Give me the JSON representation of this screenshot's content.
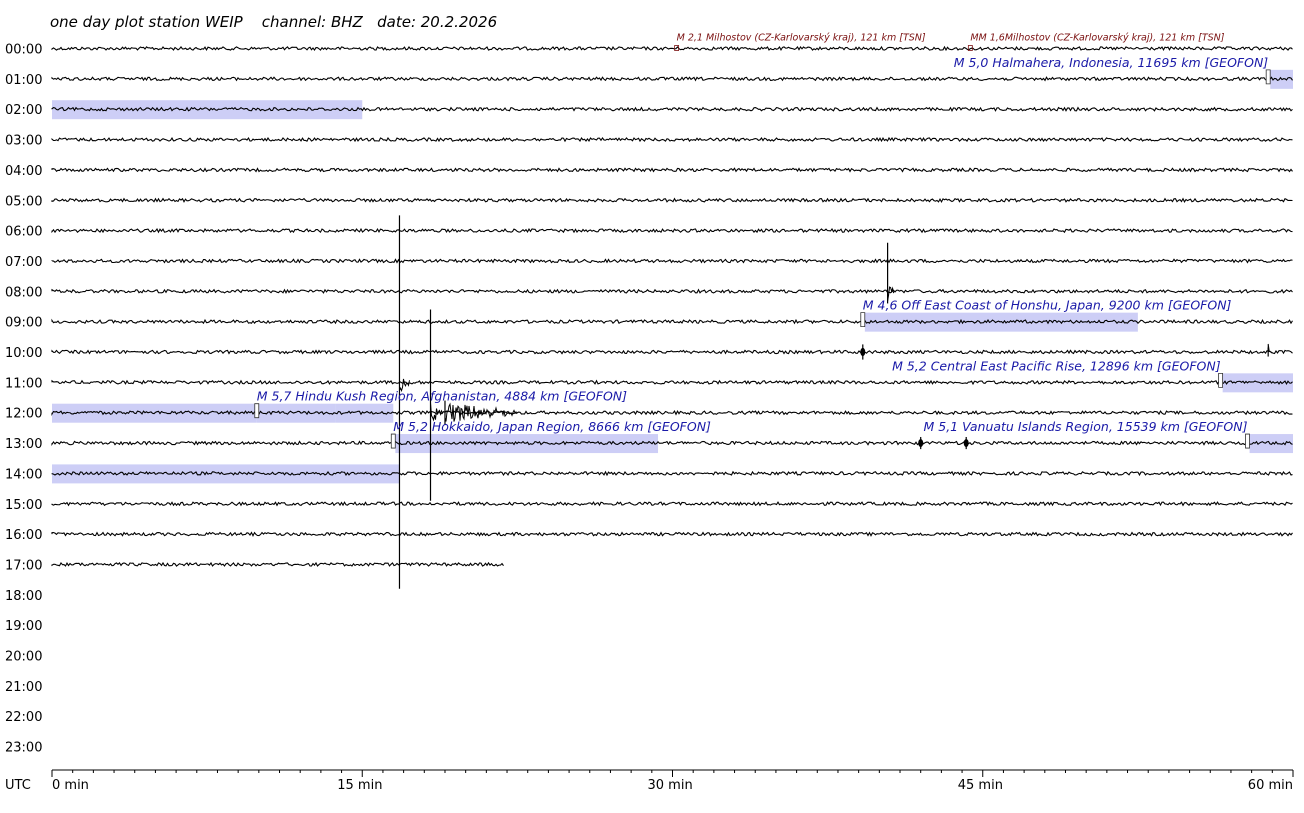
{
  "title": "one day plot station WEIP    channel: BHZ   date: 20.2.2026",
  "chart_data": {
    "type": "helicorder",
    "station": "WEIP",
    "channel": "BHZ",
    "date": "20.2.2026",
    "timezone_label": "UTC",
    "row_labels": [
      "00:00",
      "01:00",
      "02:00",
      "03:00",
      "04:00",
      "05:00",
      "06:00",
      "07:00",
      "08:00",
      "09:00",
      "10:00",
      "11:00",
      "12:00",
      "13:00",
      "14:00",
      "15:00",
      "16:00",
      "17:00",
      "18:00",
      "19:00",
      "20:00",
      "21:00",
      "22:00",
      "23:00"
    ],
    "x_ticks": [
      {
        "value": 0,
        "label": "0 min"
      },
      {
        "value": 15,
        "label": "15 min"
      },
      {
        "value": 30,
        "label": "30 min"
      },
      {
        "value": 45,
        "label": "45 min"
      },
      {
        "value": 60,
        "label": "60 min"
      }
    ],
    "xlim": [
      0,
      60
    ],
    "data_end": {
      "hour": 17,
      "minute": 21.9
    },
    "events": [
      {
        "label": "M 2,1 Milhostov (CZ-Karlovarský kraj), 121 km  [TSN]",
        "hour": 0,
        "minute": 30.2,
        "source": "TSN",
        "magnitude": 2.1
      },
      {
        "label": "MM 1,6Milhostov (CZ-Karlovarský kraj), 121 km  [TSN]",
        "hour": 0,
        "minute": 44.4,
        "source": "TSN",
        "magnitude": 1.6
      },
      {
        "label": "M 5,0 Halmahera, Indonesia, 11695 km  [GEOFON]",
        "hour": 1,
        "minute": 58.8,
        "source": "GEOFON",
        "magnitude": 5.0
      },
      {
        "label": "M 4,6 Off East Coast of Honshu, Japan, 9200 km  [GEOFON]",
        "hour": 9,
        "minute": 39.2,
        "source": "GEOFON",
        "magnitude": 4.6
      },
      {
        "label": "M 5,2 Central East Pacific Rise, 12896 km  [GEOFON]",
        "hour": 11,
        "minute": 56.5,
        "source": "GEOFON",
        "magnitude": 5.2
      },
      {
        "label": "M 5,7 Hindu Kush Region, Afghanistan, 4884 km  [GEOFON]",
        "hour": 12,
        "minute": 9.9,
        "source": "GEOFON",
        "magnitude": 5.7
      },
      {
        "label": "M 5,2 Hokkaido, Japan Region, 8666 km  [GEOFON]",
        "hour": 13,
        "minute": 16.5,
        "source": "GEOFON",
        "magnitude": 5.2
      },
      {
        "label": "M 5,1 Vanuatu Islands Region, 15539 km  [GEOFON]",
        "hour": 13,
        "minute": 57.8,
        "source": "GEOFON",
        "magnitude": 5.1
      }
    ],
    "highlights": [
      {
        "hour": 1,
        "start": 58.9,
        "end": 60
      },
      {
        "hour": 2,
        "start": 0,
        "end": 15
      },
      {
        "hour": 9,
        "start": 39.3,
        "end": 52.5
      },
      {
        "hour": 11,
        "start": 56.6,
        "end": 60
      },
      {
        "hour": 12,
        "start": 0,
        "end": 9.9
      },
      {
        "hour": 12,
        "start": 9.9,
        "end": 13.7
      },
      {
        "hour": 12,
        "start": 13.7,
        "end": 16.5
      },
      {
        "hour": 13,
        "start": 16.6,
        "end": 29.3
      },
      {
        "hour": 13,
        "start": 57.9,
        "end": 60
      },
      {
        "hour": 14,
        "start": 0,
        "end": 16.8
      }
    ],
    "bursts": [
      {
        "hour": 11,
        "minute": 16.8,
        "up_hours": 5.5,
        "down_hours": 6.8,
        "width_min": 0.5
      },
      {
        "hour": 12,
        "minute": 18.3,
        "up_hours": 3.4,
        "down_hours": 2.9,
        "width_min": 0.6
      },
      {
        "hour": 12,
        "minute": 19.0,
        "up_hours": 0.4,
        "down_hours": 0.4,
        "width_min": 3.5
      },
      {
        "hour": 8,
        "minute": 40.4,
        "up_hours": 1.6,
        "down_hours": 0.4,
        "width_min": 0.3
      },
      {
        "hour": 10,
        "minute": 39.2,
        "up_hours": 0.25,
        "down_hours": 0.25,
        "width_min": 0.1
      },
      {
        "hour": 10,
        "minute": 58.8,
        "up_hours": 0.15,
        "down_hours": 0.15,
        "width_min": 0.2
      },
      {
        "hour": 13,
        "minute": 42.0,
        "up_hours": 0.2,
        "down_hours": 0.2,
        "width_min": 0.1
      },
      {
        "hour": 13,
        "minute": 44.2,
        "up_hours": 0.2,
        "down_hours": 0.2,
        "width_min": 0.1
      }
    ],
    "colors": {
      "trace": "#000000",
      "event_label": "#1a1aa8",
      "local_event_label": "#7a1010",
      "highlight": "#c4c6f5"
    }
  }
}
